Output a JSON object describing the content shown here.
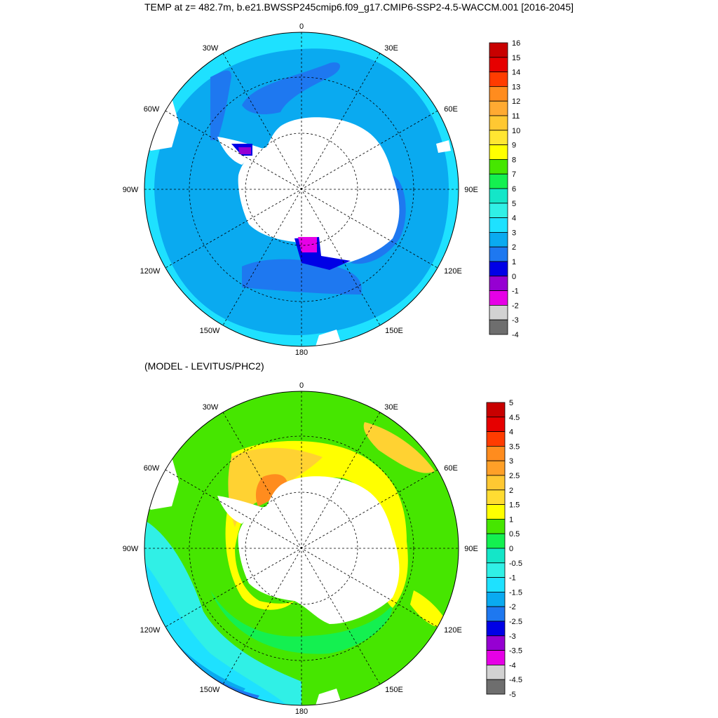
{
  "title": "TEMP at z= 482.7m, b.e21.BWSSP245cmip6.f09_g17.CMIP6-SSP2-4.5-WACCM.001 [2016-2045]",
  "subtitle": "(MODEL - LEVITUS/PHC2)",
  "longitude_labels": {
    "lon_0": "0",
    "lon_30e": "30E",
    "lon_60e": "60E",
    "lon_90e": "90E",
    "lon_120e": "120E",
    "lon_150e": "150E",
    "lon_180": "180",
    "lon_150w": "150W",
    "lon_120w": "120W",
    "lon_90w": "90W",
    "lon_60w": "60W",
    "lon_30w": "30W"
  },
  "colors": {
    "land": "#ffffff",
    "top_palette": [
      "#6e6e6e",
      "#d2d2d2",
      "#e600e6",
      "#9600d2",
      "#0000e6",
      "#1e78f0",
      "#0aaaf0",
      "#1ee1ff",
      "#30f0e6",
      "#14e6c8",
      "#14f050",
      "#46e600",
      "#ffff00",
      "#ffd232",
      "#ffaa32",
      "#ff8c1e",
      "#ff3c00",
      "#e60000",
      "#c80000",
      "#a50000"
    ],
    "bottom_palette": [
      "#6e6e6e",
      "#d2d2d2",
      "#e600e6",
      "#9600d2",
      "#0000e6",
      "#0a5aeb",
      "#1e78f0",
      "#0aaaf0",
      "#1ee1ff",
      "#30f0e6",
      "#14e6c8",
      "#14f050",
      "#46e600",
      "#ffff00",
      "#ffd232",
      "#ffaa32",
      "#ff8c1e",
      "#ff3c00",
      "#e60000",
      "#c80000",
      "#a50000"
    ]
  },
  "top_colorbar": {
    "labels": [
      "16",
      "15",
      "14",
      "13",
      "12",
      "11",
      "10",
      "9",
      "8",
      "7",
      "6",
      "5",
      "4",
      "3",
      "2",
      "1",
      "0",
      "-1",
      "-2",
      "-3",
      "-4"
    ],
    "colors": [
      "#c80000",
      "#e60000",
      "#ff3c00",
      "#ff8c1e",
      "#ffaa32",
      "#ffc832",
      "#ffe632",
      "#ffff00",
      "#46e600",
      "#14f050",
      "#14e6c8",
      "#30f0e6",
      "#1ee1ff",
      "#0aaaf0",
      "#1e78f0",
      "#0000e6",
      "#9600d2",
      "#e600e6",
      "#d2d2d2",
      "#6e6e6e"
    ]
  },
  "bottom_colorbar": {
    "labels": [
      "5",
      "4.5",
      "4",
      "3.5",
      "3",
      "2.5",
      "2",
      "1.5",
      "1",
      "0.5",
      "0",
      "-0.5",
      "-1",
      "-1.5",
      "-2",
      "-2.5",
      "-3",
      "-3.5",
      "-4",
      "-4.5",
      "-5"
    ],
    "colors": [
      "#c80000",
      "#e60000",
      "#ff3c00",
      "#ff8c1e",
      "#ffa028",
      "#ffc832",
      "#ffdc32",
      "#ffff00",
      "#46e600",
      "#14f050",
      "#14e6c8",
      "#30f0e6",
      "#1ee1ff",
      "#0aaaf0",
      "#1e78f0",
      "#0000e6",
      "#9600d2",
      "#e600e6",
      "#d2d2d2",
      "#6e6e6e"
    ]
  }
}
